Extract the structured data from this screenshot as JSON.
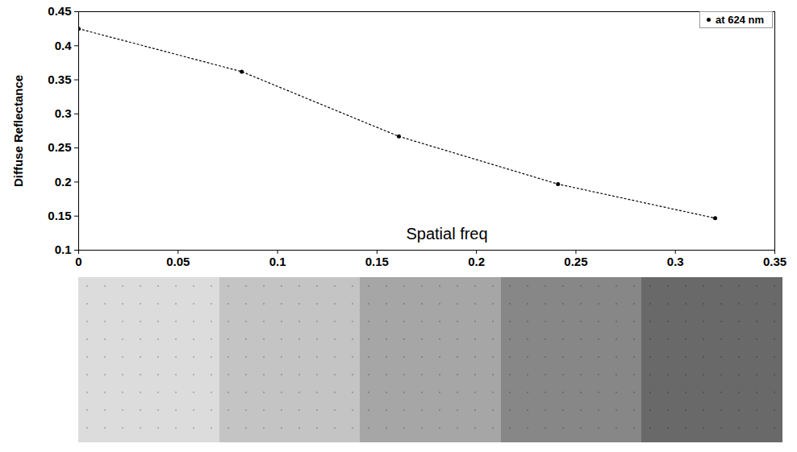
{
  "chart_data": {
    "type": "line",
    "xlabel": "Spatial freq",
    "ylabel": "Diffuse Reflectance",
    "x": [
      0,
      0.082,
      0.161,
      0.241,
      0.32
    ],
    "series": [
      {
        "name": "at 624 nm",
        "color": "#000000",
        "marker": "dot",
        "line_style": "dotted",
        "values": [
          0.425,
          0.362,
          0.267,
          0.197,
          0.147
        ]
      }
    ],
    "xlim": [
      0,
      0.35
    ],
    "xticks": [
      0,
      0.05,
      0.1,
      0.15,
      0.2,
      0.25,
      0.3,
      0.35
    ],
    "ylim": [
      0.1,
      0.45
    ],
    "yticks": [
      0.1,
      0.15,
      0.2,
      0.25,
      0.3,
      0.35,
      0.4,
      0.45
    ],
    "grid": false,
    "legend": "top-right"
  }
}
